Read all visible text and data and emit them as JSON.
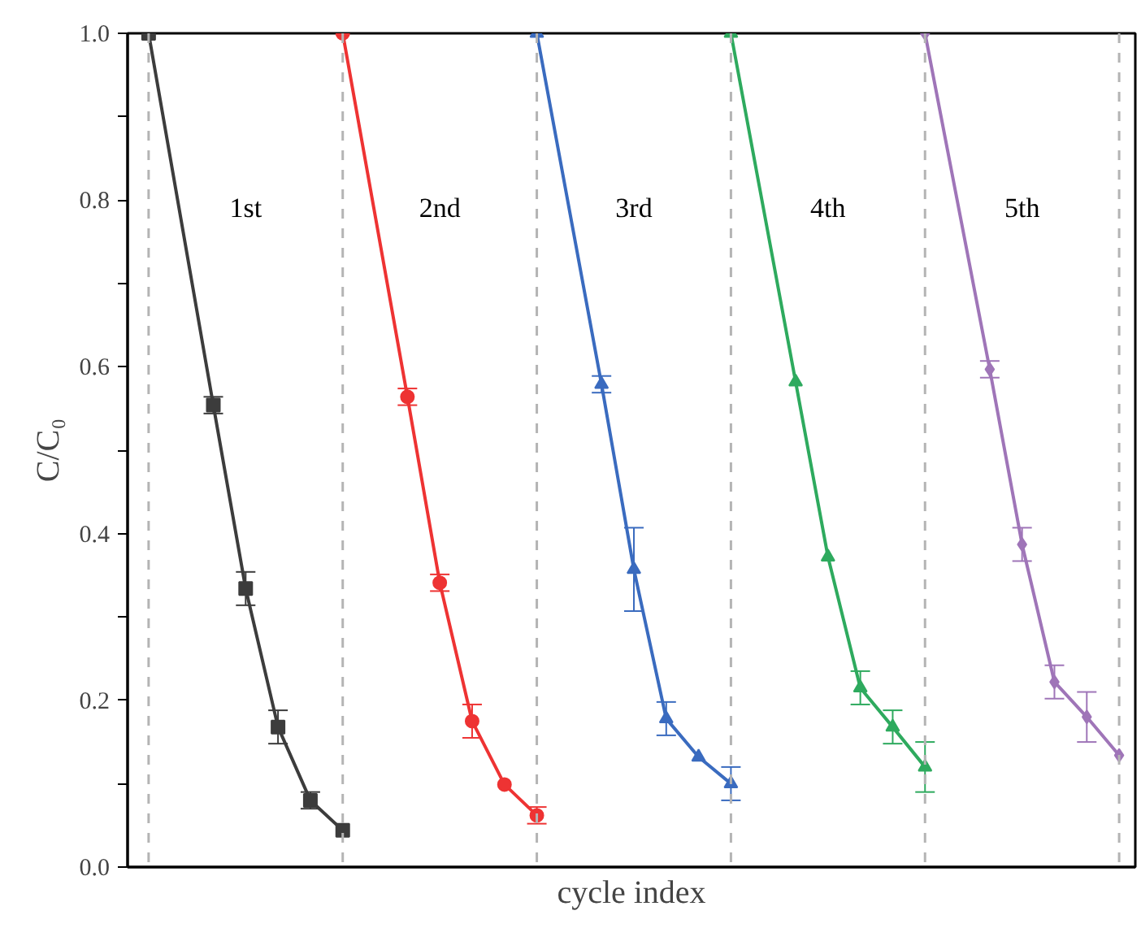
{
  "chart_data": {
    "type": "line",
    "xlabel": "cycle index",
    "ylabel": "C/C₀",
    "categories": [
      null,
      null,
      null,
      null,
      null,
      null,
      null,
      null,
      null,
      null,
      null,
      null,
      null,
      null,
      null,
      null,
      null,
      null,
      null,
      null,
      null,
      null,
      null,
      null,
      null,
      null,
      null,
      null,
      null,
      null,
      null
    ],
    "ylim": [
      0,
      1
    ],
    "yticks": [
      {
        "value": 0,
        "label": "0.0"
      },
      {
        "value": 0.1,
        "label": null
      },
      {
        "value": 0.2,
        "label": "0.2"
      },
      {
        "value": 0.3,
        "label": null
      },
      {
        "value": 0.4,
        "label": "0.4"
      },
      {
        "value": 0.5,
        "label": null
      },
      {
        "value": 0.6,
        "label": "0.6"
      },
      {
        "value": 0.7,
        "label": null
      },
      {
        "value": 0.8,
        "label": "0.8"
      },
      {
        "value": 0.9,
        "label": null
      },
      {
        "value": 1,
        "label": "1.0"
      }
    ],
    "tick_labels": "y",
    "grid": "x",
    "line_style": "solid",
    "series": [
      {
        "color": "#3c3c3c",
        "marker": "square",
        "values": [
          1.0,
          null,
          0.554,
          0.334,
          0.168,
          0.08,
          0.044,
          null,
          null,
          null,
          null,
          null,
          null,
          null,
          null,
          null,
          null,
          null,
          null,
          null,
          null,
          null,
          null,
          null,
          null,
          null,
          null,
          null,
          null,
          null,
          null
        ],
        "errors": [
          null,
          null,
          0.01,
          0.02,
          0.02,
          0.01,
          null,
          null,
          null,
          null,
          null,
          null,
          null,
          null,
          null,
          null,
          null,
          null,
          null,
          null,
          null,
          null,
          null,
          null,
          null,
          null,
          null,
          null,
          null,
          null,
          null
        ]
      },
      {
        "color": "#ee3333",
        "marker": "circle",
        "values": [
          null,
          null,
          null,
          null,
          null,
          null,
          1.0,
          null,
          0.564,
          0.341,
          0.175,
          0.099,
          0.062,
          null,
          null,
          null,
          null,
          null,
          null,
          null,
          null,
          null,
          null,
          null,
          null,
          null,
          null,
          null,
          null,
          null,
          null
        ],
        "errors": [
          null,
          null,
          null,
          null,
          null,
          null,
          null,
          null,
          0.01,
          0.01,
          0.02,
          null,
          0.01,
          null,
          null,
          null,
          null,
          null,
          null,
          null,
          null,
          null,
          null,
          null,
          null,
          null,
          null,
          null,
          null,
          null,
          null
        ]
      },
      {
        "color": "#3a6bbf",
        "marker": "triangle",
        "values": [
          null,
          null,
          null,
          null,
          null,
          null,
          null,
          null,
          null,
          null,
          null,
          null,
          1.0,
          null,
          0.579,
          0.357,
          0.178,
          0.132,
          0.1,
          null,
          null,
          null,
          null,
          null,
          null,
          null,
          null,
          null,
          null,
          null,
          null
        ],
        "errors": [
          null,
          null,
          null,
          null,
          null,
          null,
          null,
          null,
          null,
          null,
          null,
          null,
          null,
          null,
          0.01,
          0.05,
          0.02,
          null,
          0.02,
          null,
          null,
          null,
          null,
          null,
          null,
          null,
          null,
          null,
          null,
          null,
          null
        ]
      },
      {
        "color": "#2eaa5e",
        "marker": "triangle",
        "values": [
          null,
          null,
          null,
          null,
          null,
          null,
          null,
          null,
          null,
          null,
          null,
          null,
          null,
          null,
          null,
          null,
          null,
          null,
          1.0,
          null,
          0.582,
          0.372,
          0.215,
          0.168,
          0.12,
          null,
          null,
          null,
          null,
          null,
          null
        ],
        "errors": [
          null,
          null,
          null,
          null,
          null,
          null,
          null,
          null,
          null,
          null,
          null,
          null,
          null,
          null,
          null,
          null,
          null,
          null,
          null,
          null,
          null,
          null,
          0.02,
          0.02,
          0.03,
          null,
          null,
          null,
          null,
          null,
          null
        ]
      },
      {
        "color": "#9f75b8",
        "marker": "diamond",
        "values": [
          null,
          null,
          null,
          null,
          null,
          null,
          null,
          null,
          null,
          null,
          null,
          null,
          null,
          null,
          null,
          null,
          null,
          null,
          null,
          null,
          null,
          null,
          null,
          null,
          1.0,
          null,
          0.597,
          0.387,
          0.222,
          0.18,
          0.134
        ],
        "errors": [
          null,
          null,
          null,
          null,
          null,
          null,
          null,
          null,
          null,
          null,
          null,
          null,
          null,
          null,
          null,
          null,
          null,
          null,
          null,
          null,
          null,
          null,
          null,
          null,
          null,
          null,
          0.01,
          0.02,
          0.02,
          0.03,
          null
        ]
      }
    ],
    "annotations": [
      "1st",
      "2nd",
      "3rd",
      "4th",
      "5th"
    ]
  }
}
